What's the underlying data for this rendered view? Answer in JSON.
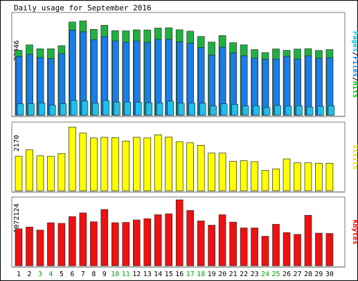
{
  "chart_data": {
    "type": "bar",
    "title": "Daily usage for September 2016",
    "categories": [
      "1",
      "2",
      "3",
      "4",
      "5",
      "6",
      "7",
      "8",
      "9",
      "10",
      "11",
      "12",
      "13",
      "14",
      "15",
      "16",
      "17",
      "18",
      "19",
      "20",
      "21",
      "22",
      "23",
      "24",
      "25",
      "26",
      "27",
      "28",
      "29",
      "30"
    ],
    "weekend_days": [
      "3",
      "4",
      "10",
      "11",
      "17",
      "18",
      "24",
      "25"
    ],
    "panels": [
      {
        "key": "usage",
        "max_label": "37046",
        "ymax": 37046,
        "legend": [
          {
            "text": "Pages",
            "color": "#00c0d0"
          },
          {
            "text": "/",
            "color": "#000000"
          },
          {
            "text": "Files",
            "color": "#0080ff"
          },
          {
            "text": "/",
            "color": "#000000"
          },
          {
            "text": "Hits",
            "color": "#00c000"
          }
        ],
        "series": [
          {
            "name": "Hits",
            "color": "#20b040",
            "values": [
              24050,
              26060,
              24610,
              24630,
              25790,
              34540,
              34960,
              31840,
              33340,
              31360,
              31270,
              31650,
              31610,
              32280,
              32410,
              31680,
              31160,
              29170,
              27110,
              29540,
              26890,
              26080,
              24310,
              23200,
              24580,
              24050,
              24520,
              24660,
              24010,
              24320
            ]
          },
          {
            "name": "Files",
            "color": "#1a7de8",
            "values": [
              21800,
              22460,
              21350,
              20960,
              22840,
              31540,
              30900,
              27980,
              29100,
              27550,
              27030,
              27510,
              27070,
              28090,
              28110,
              27180,
              26690,
              25050,
              22260,
              25220,
              23070,
              21970,
              21120,
              20730,
              20830,
              21830,
              20790,
              21980,
              21120,
              21340
            ]
          },
          {
            "name": "Pages",
            "color": "#20c0e8",
            "values": [
              4190,
              4270,
              4520,
              3670,
              4290,
              5470,
              5250,
              4470,
              5430,
              4840,
              4870,
              4860,
              4600,
              4560,
              5160,
              4440,
              4520,
              4480,
              3410,
              4190,
              4040,
              3430,
              3560,
              2820,
              3600,
              3360,
              3560,
              3040,
              3320,
              3460
            ]
          }
        ]
      },
      {
        "key": "visits",
        "max_label": "2170",
        "ymax": 2170,
        "legend": [
          {
            "text": "Visits",
            "color": "#e0e000"
          }
        ],
        "series": [
          {
            "name": "Visits",
            "color": "#ffff00",
            "values": [
              1140,
              1350,
              1150,
              1140,
              1230,
              2100,
              1900,
              1740,
              1760,
              1750,
              1640,
              1760,
              1740,
              1840,
              1770,
              1620,
              1580,
              1500,
              1240,
              1240,
              970,
              990,
              960,
              670,
              720,
              1050,
              920,
              920,
              910,
              910
            ]
          }
        ]
      },
      {
        "key": "kbytes",
        "max_label": "1072124",
        "ymax": 1072124,
        "legend": [
          {
            "text": "KBytes",
            "color": "#ff0000"
          }
        ],
        "series": [
          {
            "name": "KBytes",
            "color": "#ee1111",
            "values": [
              600000,
              630000,
              580000,
              700000,
              690000,
              800000,
              860000,
              715000,
              915000,
              700000,
              705000,
              745000,
              765000,
              830000,
              845000,
              1072124,
              900000,
              730000,
              660000,
              830000,
              710000,
              615000,
              615000,
              480000,
              675000,
              540000,
              510000,
              820000,
              530000,
              525000
            ]
          }
        ]
      }
    ]
  }
}
